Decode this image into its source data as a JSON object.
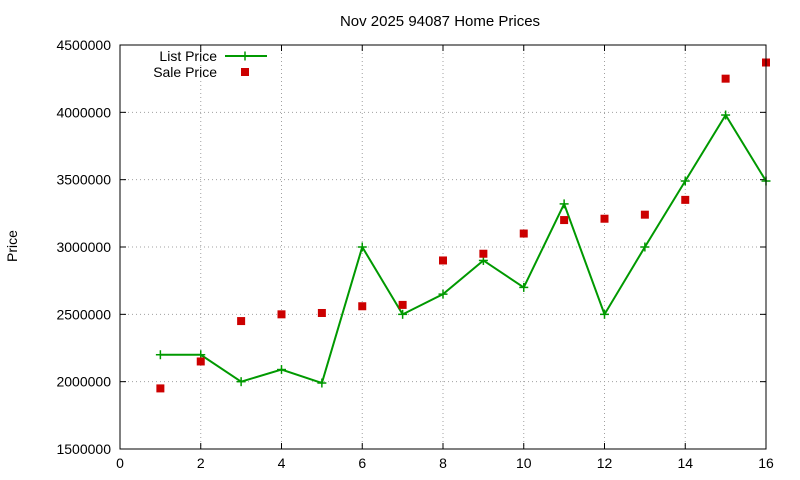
{
  "chart_data": {
    "type": "line",
    "title": "Nov 2025 94087 Home Prices",
    "xlabel": "",
    "ylabel": "Price",
    "xlim": [
      0,
      16
    ],
    "ylim": [
      1500000,
      4500000
    ],
    "x_ticks": [
      0,
      2,
      4,
      6,
      8,
      10,
      12,
      14,
      16
    ],
    "y_ticks": [
      1500000,
      2000000,
      2500000,
      3000000,
      3500000,
      4000000,
      4500000
    ],
    "x_tick_labels": [
      "0",
      "2",
      "4",
      "6",
      "8",
      "10",
      "12",
      "14",
      "16"
    ],
    "y_tick_labels": [
      "1500000",
      "2000000",
      "2500000",
      "3000000",
      "3500000",
      "4000000",
      "4500000"
    ],
    "grid": true,
    "legend_position": "top-left",
    "series": [
      {
        "name": "List Price",
        "style": "linespoints",
        "marker": "plus",
        "color": "#009900",
        "x": [
          1,
          2,
          3,
          4,
          5,
          6,
          7,
          8,
          9,
          10,
          11,
          12,
          13,
          14,
          15,
          16
        ],
        "y": [
          2200000,
          2200000,
          2000000,
          2090000,
          1990000,
          3000000,
          2500000,
          2650000,
          2900000,
          2700000,
          3320000,
          2500000,
          3000000,
          3490000,
          3980000,
          3490000
        ]
      },
      {
        "name": "Sale Price",
        "style": "points",
        "marker": "square",
        "color": "#cc0000",
        "x": [
          1,
          2,
          3,
          4,
          5,
          6,
          7,
          8,
          9,
          10,
          11,
          12,
          13,
          14,
          15,
          16
        ],
        "y": [
          1950000,
          2150000,
          2450000,
          2500000,
          2510000,
          2560000,
          2570000,
          2900000,
          2950000,
          3100000,
          3200000,
          3210000,
          3240000,
          3350000,
          4250000,
          4370000
        ]
      }
    ]
  }
}
